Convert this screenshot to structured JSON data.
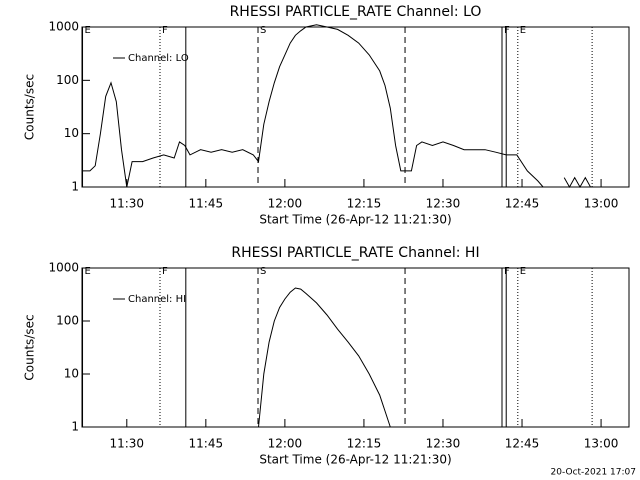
{
  "chart_data": [
    {
      "type": "line",
      "title": "RHESSI PARTICLE_RATE Channel: LO",
      "x_label": "Start Time (26-Apr-12 11:21:30)",
      "y_label": "Counts/sec",
      "x": [
        681.5,
        683,
        684,
        685,
        686,
        687,
        688,
        689,
        690,
        691,
        693,
        695,
        697,
        699,
        700,
        701,
        702,
        704,
        706,
        708,
        710,
        712,
        714,
        715,
        716,
        717,
        718,
        719,
        720,
        721,
        722,
        723,
        724,
        726,
        728,
        730,
        732,
        734,
        736,
        738,
        739,
        740,
        741,
        742,
        743,
        744,
        745,
        746,
        748,
        750,
        752,
        754,
        756,
        758,
        760,
        762,
        764,
        766,
        768,
        769,
        770,
        773,
        774,
        775,
        776,
        777,
        778
      ],
      "series": [
        {
          "name": "Channel: LO",
          "color": "#000000",
          "values": [
            2,
            2,
            2.5,
            10,
            50,
            90,
            40,
            5,
            1,
            3,
            3,
            3.5,
            4,
            3.5,
            7,
            6,
            4,
            5,
            4.5,
            5,
            4.5,
            5,
            4,
            3,
            15,
            40,
            90,
            180,
            300,
            500,
            700,
            850,
            1000,
            1100,
            1000,
            900,
            700,
            500,
            300,
            150,
            80,
            30,
            6,
            2,
            2,
            2,
            6,
            7,
            6,
            7,
            6,
            5,
            5,
            5,
            4.5,
            4,
            4,
            2,
            1.3,
            1,
            null,
            1.5,
            1,
            1.5,
            1,
            1.5,
            1
          ]
        }
      ],
      "xlim": [
        681.5,
        785.3
      ],
      "xticks": [
        {
          "value": 690,
          "label": "11:30"
        },
        {
          "value": 705,
          "label": "11:45"
        },
        {
          "value": 720,
          "label": "12:00"
        },
        {
          "value": 735,
          "label": "12:15"
        },
        {
          "value": 750,
          "label": "12:30"
        },
        {
          "value": 765,
          "label": "12:45"
        },
        {
          "value": 780,
          "label": "13:00"
        }
      ],
      "ylim": [
        1,
        1000
      ],
      "yticks": [
        1,
        10,
        100,
        1000
      ],
      "y_scale": "log",
      "legend": "upper left",
      "markers": [
        {
          "x": 681.6,
          "label": "E",
          "style": "solid"
        },
        {
          "x": 696.3,
          "label": "F",
          "style": "dotted"
        },
        {
          "x": 701.2,
          "style": "solid"
        },
        {
          "x": 714.9,
          "label": "S",
          "style": "dashed"
        },
        {
          "x": 742.8,
          "style": "dashed"
        },
        {
          "x": 761.2,
          "label": "F",
          "style": "solid"
        },
        {
          "x": 762.0,
          "style": "solid"
        },
        {
          "x": 764.2,
          "label": "E",
          "style": "dotted"
        },
        {
          "x": 778.3,
          "style": "dotted"
        }
      ]
    },
    {
      "type": "line",
      "title": "RHESSI PARTICLE_RATE Channel: HI",
      "x_label": "Start Time (26-Apr-12 11:21:30)",
      "y_label": "Counts/sec",
      "x": [
        715,
        716,
        717,
        718,
        719,
        720,
        721,
        722,
        723,
        724,
        726,
        728,
        730,
        732,
        734,
        736,
        738,
        739,
        740
      ],
      "series": [
        {
          "name": "Channel: HI",
          "color": "#000000",
          "values": [
            1,
            10,
            40,
            100,
            180,
            260,
            350,
            420,
            400,
            330,
            220,
            130,
            70,
            40,
            22,
            10,
            4,
            2,
            1
          ]
        }
      ],
      "xlim": [
        681.5,
        785.3
      ],
      "xticks": [
        {
          "value": 690,
          "label": "11:30"
        },
        {
          "value": 705,
          "label": "11:45"
        },
        {
          "value": 720,
          "label": "12:00"
        },
        {
          "value": 735,
          "label": "12:15"
        },
        {
          "value": 750,
          "label": "12:30"
        },
        {
          "value": 765,
          "label": "12:45"
        },
        {
          "value": 780,
          "label": "13:00"
        }
      ],
      "ylim": [
        1,
        1000
      ],
      "yticks": [
        1,
        10,
        100,
        1000
      ],
      "y_scale": "log",
      "legend": "upper left",
      "markers": [
        {
          "x": 681.6,
          "label": "E",
          "style": "solid"
        },
        {
          "x": 696.3,
          "label": "F",
          "style": "dotted"
        },
        {
          "x": 701.2,
          "style": "solid"
        },
        {
          "x": 714.9,
          "label": "S",
          "style": "dashed"
        },
        {
          "x": 742.8,
          "style": "dashed"
        },
        {
          "x": 761.2,
          "label": "F",
          "style": "solid"
        },
        {
          "x": 762.0,
          "style": "solid"
        },
        {
          "x": 764.2,
          "label": "E",
          "style": "dotted"
        },
        {
          "x": 778.3,
          "style": "dotted"
        }
      ]
    }
  ],
  "footer": "20-Oct-2021 17:07"
}
